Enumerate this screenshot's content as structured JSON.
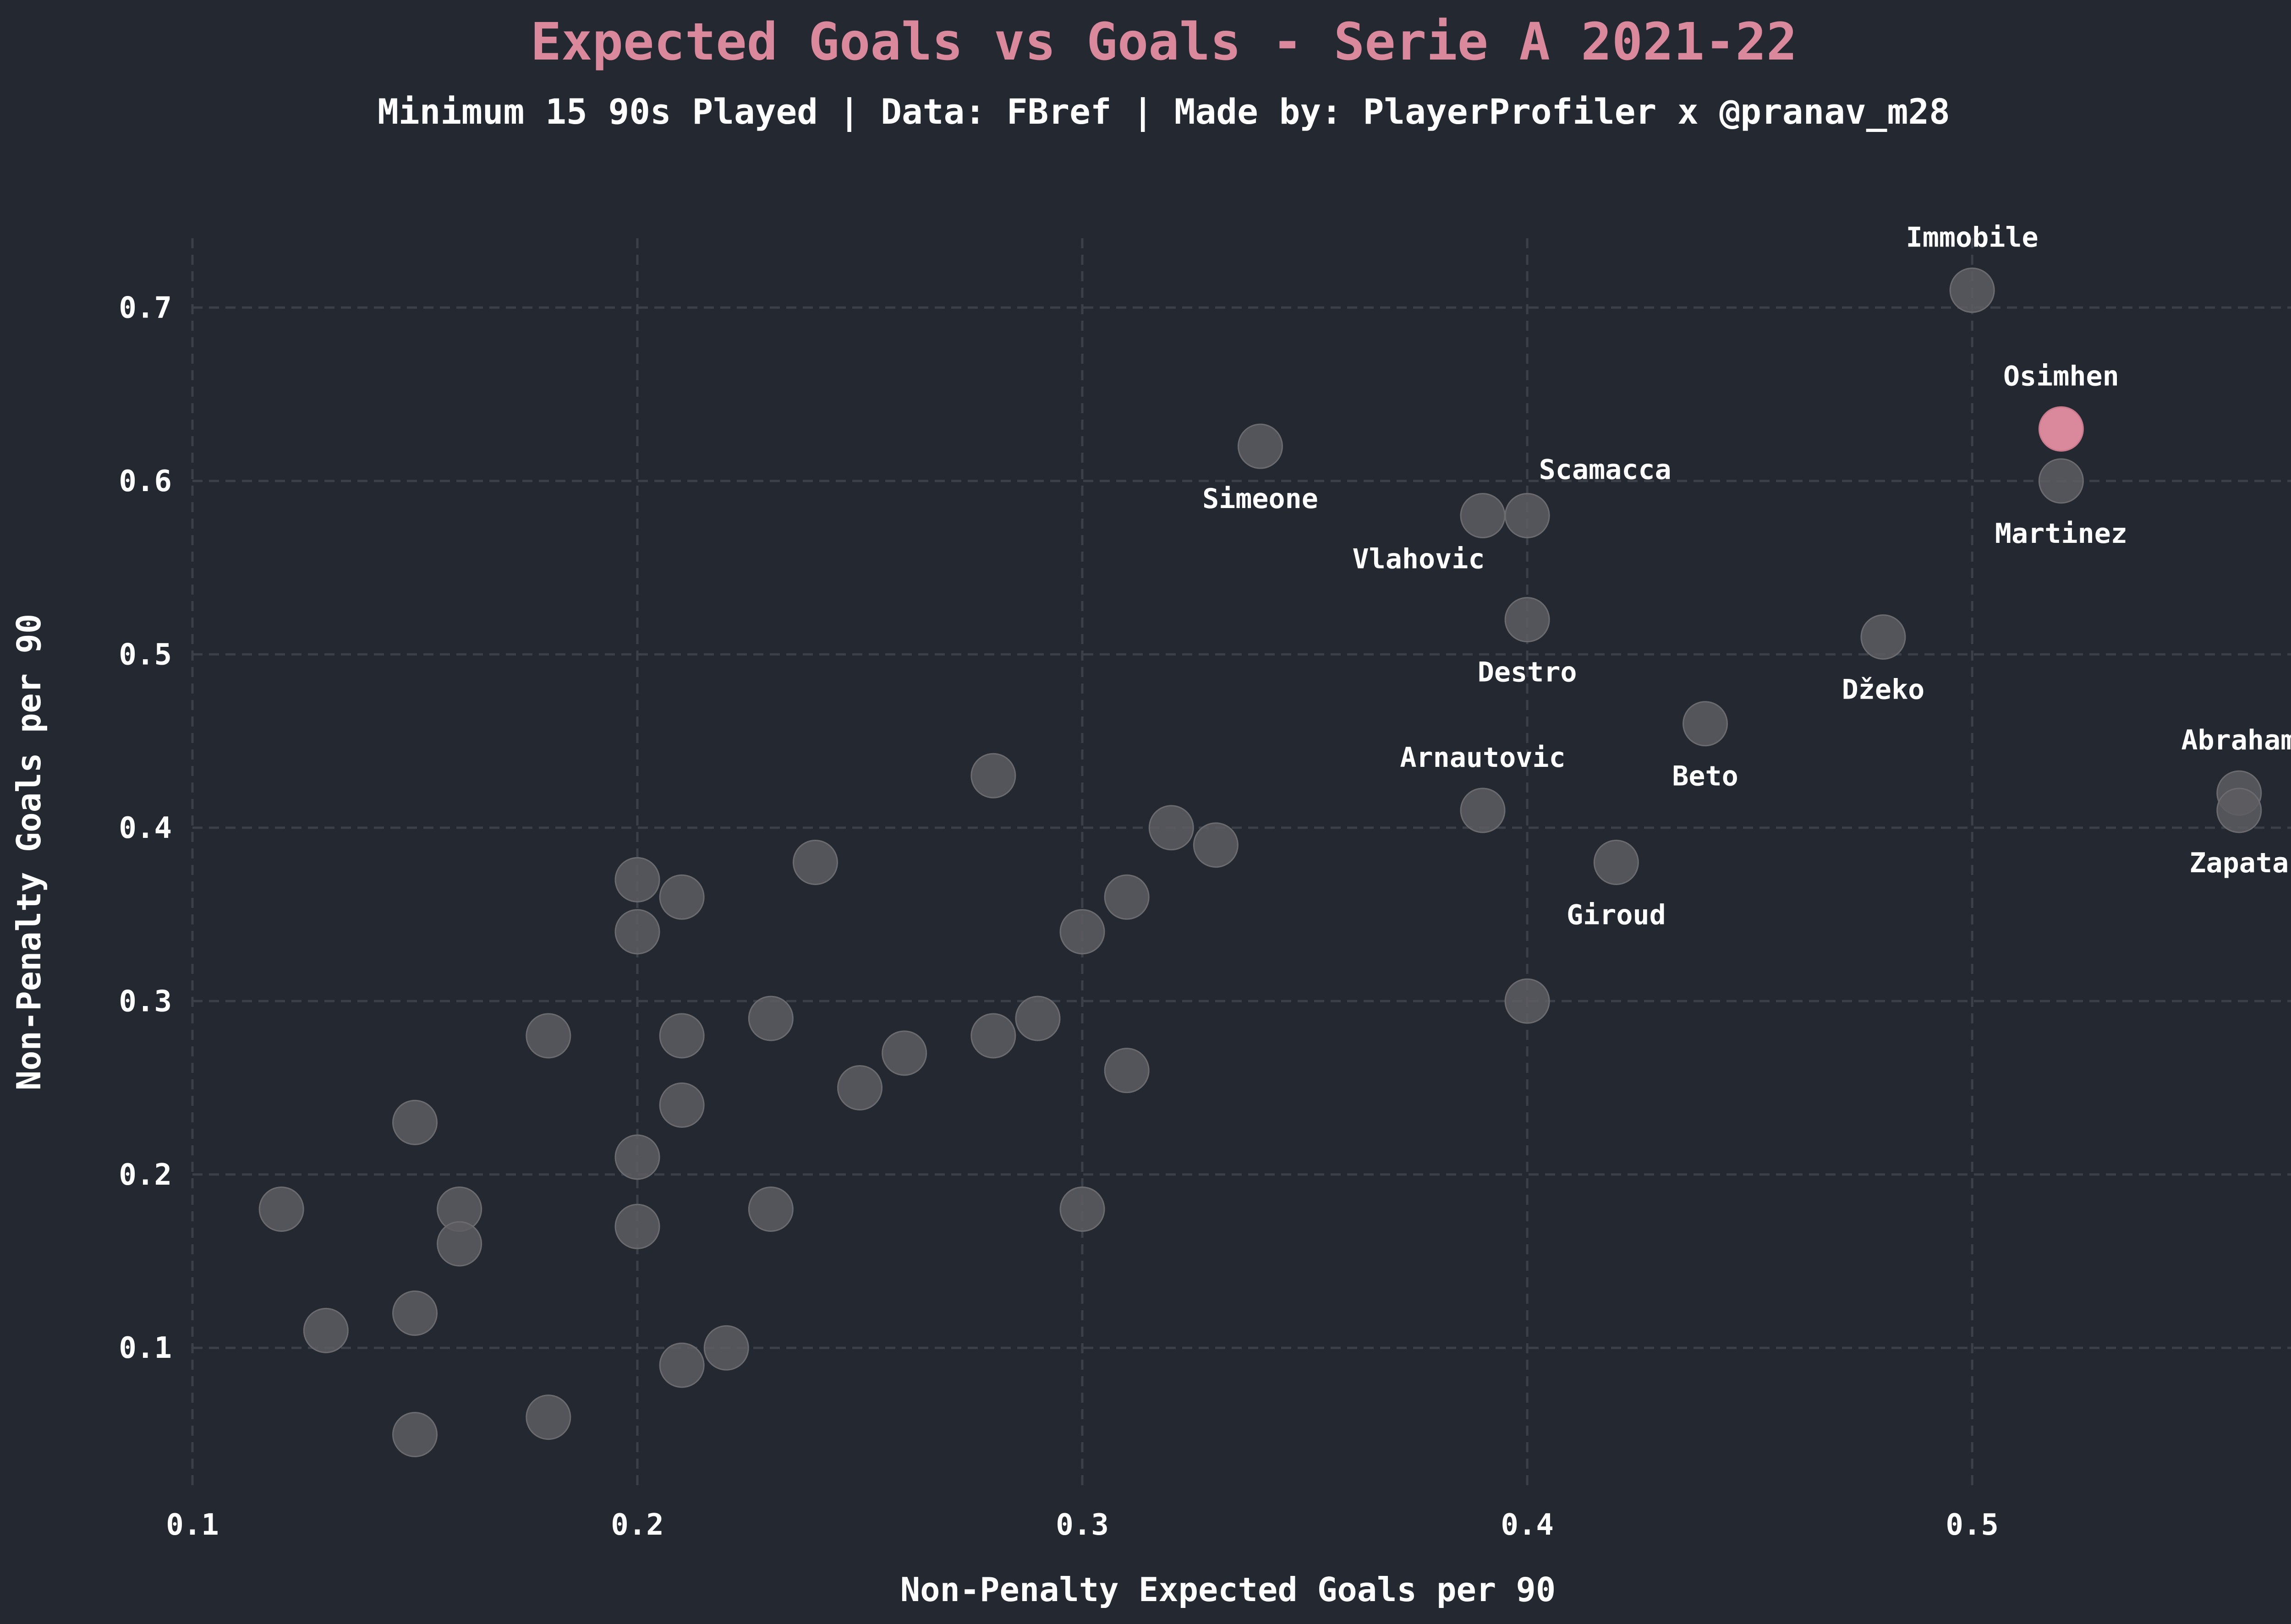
{
  "chart_data": {
    "type": "scatter",
    "title": "Expected Goals vs Goals - Serie A 2021-22",
    "subtitle": "Minimum 15 90s Played | Data: FBref | Made by: PlayerProfiler x @pranav_m28",
    "xlabel": "Non-Penalty Expected Goals per 90",
    "ylabel": "Non-Penalty Goals per 90",
    "xlim": [
      0.1,
      0.58
    ],
    "ylim": [
      0.02,
      0.74
    ],
    "xticks": [
      "0.1",
      "0.2",
      "0.3",
      "0.4",
      "0.5"
    ],
    "yticks": [
      "0.1",
      "0.2",
      "0.3",
      "0.4",
      "0.5",
      "0.6",
      "0.7"
    ],
    "grid": true,
    "colors": {
      "background": "#242831",
      "point": "#5d5d62",
      "highlight": "#d9899b",
      "title": "#d9899b",
      "text": "#ffffff",
      "grid": "#3c4049"
    },
    "points": [
      {
        "x": 0.5,
        "y": 0.71,
        "label": "Immobile",
        "label_pos": "above"
      },
      {
        "x": 0.52,
        "y": 0.63,
        "label": "Osimhen",
        "label_pos": "above",
        "highlight": true
      },
      {
        "x": 0.52,
        "y": 0.6,
        "label": "Martinez",
        "label_pos": "below"
      },
      {
        "x": 0.34,
        "y": 0.62,
        "label": "Simeone",
        "label_pos": "below"
      },
      {
        "x": 0.4,
        "y": 0.58,
        "label": "Scamacca",
        "label_pos": "above-right"
      },
      {
        "x": 0.39,
        "y": 0.58,
        "label": "Vlahovic",
        "label_pos": "below-left"
      },
      {
        "x": 0.4,
        "y": 0.52,
        "label": "Destro",
        "label_pos": "below"
      },
      {
        "x": 0.48,
        "y": 0.51,
        "label": "Džeko",
        "label_pos": "below"
      },
      {
        "x": 0.44,
        "y": 0.46,
        "label": "Beto",
        "label_pos": "below"
      },
      {
        "x": 0.39,
        "y": 0.41,
        "label": "Arnautovic",
        "label_pos": "above"
      },
      {
        "x": 0.42,
        "y": 0.38,
        "label": "Giroud",
        "label_pos": "below"
      },
      {
        "x": 0.56,
        "y": 0.42,
        "label": "Abraham",
        "label_pos": "above"
      },
      {
        "x": 0.56,
        "y": 0.41,
        "label": "Zapata",
        "label_pos": "below"
      },
      {
        "x": 0.4,
        "y": 0.3
      },
      {
        "x": 0.28,
        "y": 0.43
      },
      {
        "x": 0.32,
        "y": 0.4
      },
      {
        "x": 0.33,
        "y": 0.39
      },
      {
        "x": 0.24,
        "y": 0.38
      },
      {
        "x": 0.2,
        "y": 0.37
      },
      {
        "x": 0.21,
        "y": 0.36
      },
      {
        "x": 0.31,
        "y": 0.36
      },
      {
        "x": 0.2,
        "y": 0.34
      },
      {
        "x": 0.3,
        "y": 0.34
      },
      {
        "x": 0.23,
        "y": 0.29
      },
      {
        "x": 0.29,
        "y": 0.29
      },
      {
        "x": 0.18,
        "y": 0.28
      },
      {
        "x": 0.21,
        "y": 0.28
      },
      {
        "x": 0.28,
        "y": 0.28
      },
      {
        "x": 0.26,
        "y": 0.27
      },
      {
        "x": 0.31,
        "y": 0.26
      },
      {
        "x": 0.25,
        "y": 0.25
      },
      {
        "x": 0.21,
        "y": 0.24
      },
      {
        "x": 0.15,
        "y": 0.23
      },
      {
        "x": 0.2,
        "y": 0.21
      },
      {
        "x": 0.12,
        "y": 0.18
      },
      {
        "x": 0.16,
        "y": 0.18
      },
      {
        "x": 0.23,
        "y": 0.18
      },
      {
        "x": 0.3,
        "y": 0.18
      },
      {
        "x": 0.2,
        "y": 0.17
      },
      {
        "x": 0.16,
        "y": 0.16
      },
      {
        "x": 0.15,
        "y": 0.12
      },
      {
        "x": 0.13,
        "y": 0.11
      },
      {
        "x": 0.22,
        "y": 0.1
      },
      {
        "x": 0.21,
        "y": 0.09
      },
      {
        "x": 0.18,
        "y": 0.06
      },
      {
        "x": 0.15,
        "y": 0.05
      }
    ]
  }
}
